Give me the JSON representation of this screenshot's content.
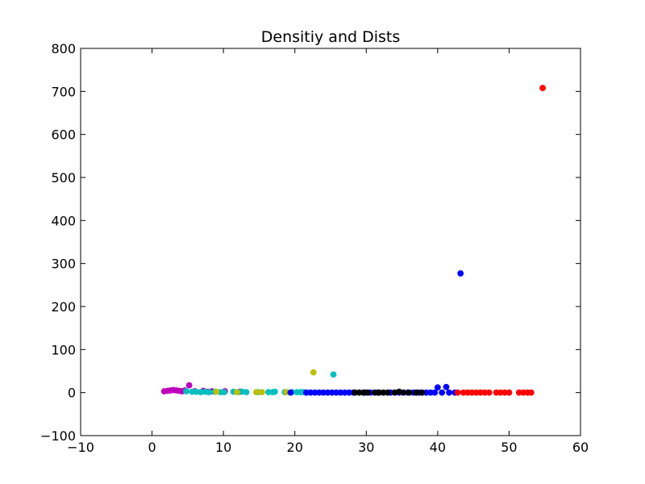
{
  "chart_data": {
    "type": "scatter",
    "title": "Densitiy and Dists",
    "xlabel": "",
    "ylabel": "",
    "xlim": [
      -10,
      60
    ],
    "ylim": [
      -100,
      800
    ],
    "xticks": [
      -10,
      0,
      10,
      20,
      30,
      40,
      50,
      60
    ],
    "yticks": [
      -100,
      0,
      100,
      200,
      300,
      400,
      500,
      600,
      700,
      800
    ],
    "xtick_labels": [
      "−10",
      "0",
      "10",
      "20",
      "30",
      "40",
      "50",
      "60"
    ],
    "ytick_labels": [
      "−100",
      "0",
      "100",
      "200",
      "300",
      "400",
      "500",
      "600",
      "700",
      "800"
    ],
    "grid": false,
    "legend": "none",
    "series": [
      {
        "color": "#bf00bf",
        "points": [
          [
            1.7,
            3
          ],
          [
            2.2,
            4
          ],
          [
            2.6,
            5
          ],
          [
            3.0,
            6
          ],
          [
            3.4,
            5
          ],
          [
            3.8,
            4
          ],
          [
            4.2,
            3
          ],
          [
            4.6,
            5
          ],
          [
            5.2,
            17
          ],
          [
            6.0,
            3
          ],
          [
            7.2,
            4
          ],
          [
            7.8,
            2
          ],
          [
            8.4,
            3
          ],
          [
            10.2,
            3
          ],
          [
            12.3,
            2
          ]
        ]
      },
      {
        "color": "#00bfbf",
        "points": [
          [
            4.8,
            3
          ],
          [
            5.6,
            2
          ],
          [
            6.2,
            2
          ],
          [
            6.8,
            1
          ],
          [
            7.4,
            2
          ],
          [
            8.0,
            1
          ],
          [
            8.8,
            2
          ],
          [
            9.6,
            1
          ],
          [
            10.1,
            1
          ],
          [
            11.4,
            2
          ],
          [
            12.0,
            1
          ],
          [
            12.6,
            2
          ],
          [
            13.2,
            1
          ],
          [
            14.8,
            1
          ],
          [
            16.3,
            1
          ],
          [
            16.9,
            1
          ],
          [
            17.2,
            2
          ],
          [
            18.6,
            1
          ],
          [
            19.6,
            1
          ],
          [
            20.3,
            1
          ],
          [
            20.8,
            1
          ],
          [
            21.2,
            1
          ],
          [
            25.4,
            42
          ]
        ]
      },
      {
        "color": "#bfbf00",
        "points": [
          [
            9.0,
            2
          ],
          [
            11.9,
            1
          ],
          [
            14.6,
            1
          ],
          [
            15.4,
            1
          ],
          [
            18.8,
            1
          ],
          [
            22.6,
            47
          ]
        ]
      },
      {
        "color": "#0000ff",
        "points": [
          [
            19.4,
            0
          ],
          [
            21.6,
            0
          ],
          [
            22.2,
            0
          ],
          [
            22.8,
            0
          ],
          [
            23.4,
            0
          ],
          [
            24.0,
            0
          ],
          [
            24.6,
            0
          ],
          [
            25.2,
            0
          ],
          [
            25.8,
            0
          ],
          [
            26.4,
            0
          ],
          [
            27.0,
            0
          ],
          [
            27.6,
            0
          ],
          [
            28.2,
            0
          ],
          [
            29.8,
            0
          ],
          [
            30.6,
            0
          ],
          [
            31.6,
            0
          ],
          [
            33.4,
            0
          ],
          [
            34.6,
            0
          ],
          [
            35.8,
            0
          ],
          [
            36.6,
            0
          ],
          [
            37.4,
            0
          ],
          [
            38.4,
            0
          ],
          [
            39.0,
            0
          ],
          [
            39.6,
            0
          ],
          [
            40.0,
            12
          ],
          [
            41.2,
            13
          ],
          [
            40.6,
            0
          ],
          [
            41.6,
            0
          ],
          [
            42.4,
            0
          ],
          [
            43.2,
            277
          ]
        ]
      },
      {
        "color": "#000000",
        "points": [
          [
            28.4,
            0
          ],
          [
            29.0,
            0
          ],
          [
            29.6,
            0
          ],
          [
            30.2,
            0
          ],
          [
            31.2,
            0
          ],
          [
            31.8,
            0
          ],
          [
            32.4,
            0
          ],
          [
            33.0,
            0
          ],
          [
            34.0,
            0
          ],
          [
            34.6,
            2
          ],
          [
            35.2,
            0
          ],
          [
            36.0,
            0
          ],
          [
            37.0,
            0
          ],
          [
            37.8,
            0
          ]
        ]
      },
      {
        "color": "#ff0000",
        "points": [
          [
            42.8,
            0
          ],
          [
            43.6,
            0
          ],
          [
            44.2,
            0
          ],
          [
            44.8,
            0
          ],
          [
            45.4,
            0
          ],
          [
            46.0,
            0
          ],
          [
            46.6,
            0
          ],
          [
            47.2,
            0
          ],
          [
            48.2,
            0
          ],
          [
            48.8,
            0
          ],
          [
            49.4,
            0
          ],
          [
            50.0,
            0
          ],
          [
            51.4,
            0
          ],
          [
            52.0,
            0
          ],
          [
            52.6,
            0
          ],
          [
            53.1,
            0
          ],
          [
            54.7,
            708
          ]
        ]
      }
    ]
  }
}
